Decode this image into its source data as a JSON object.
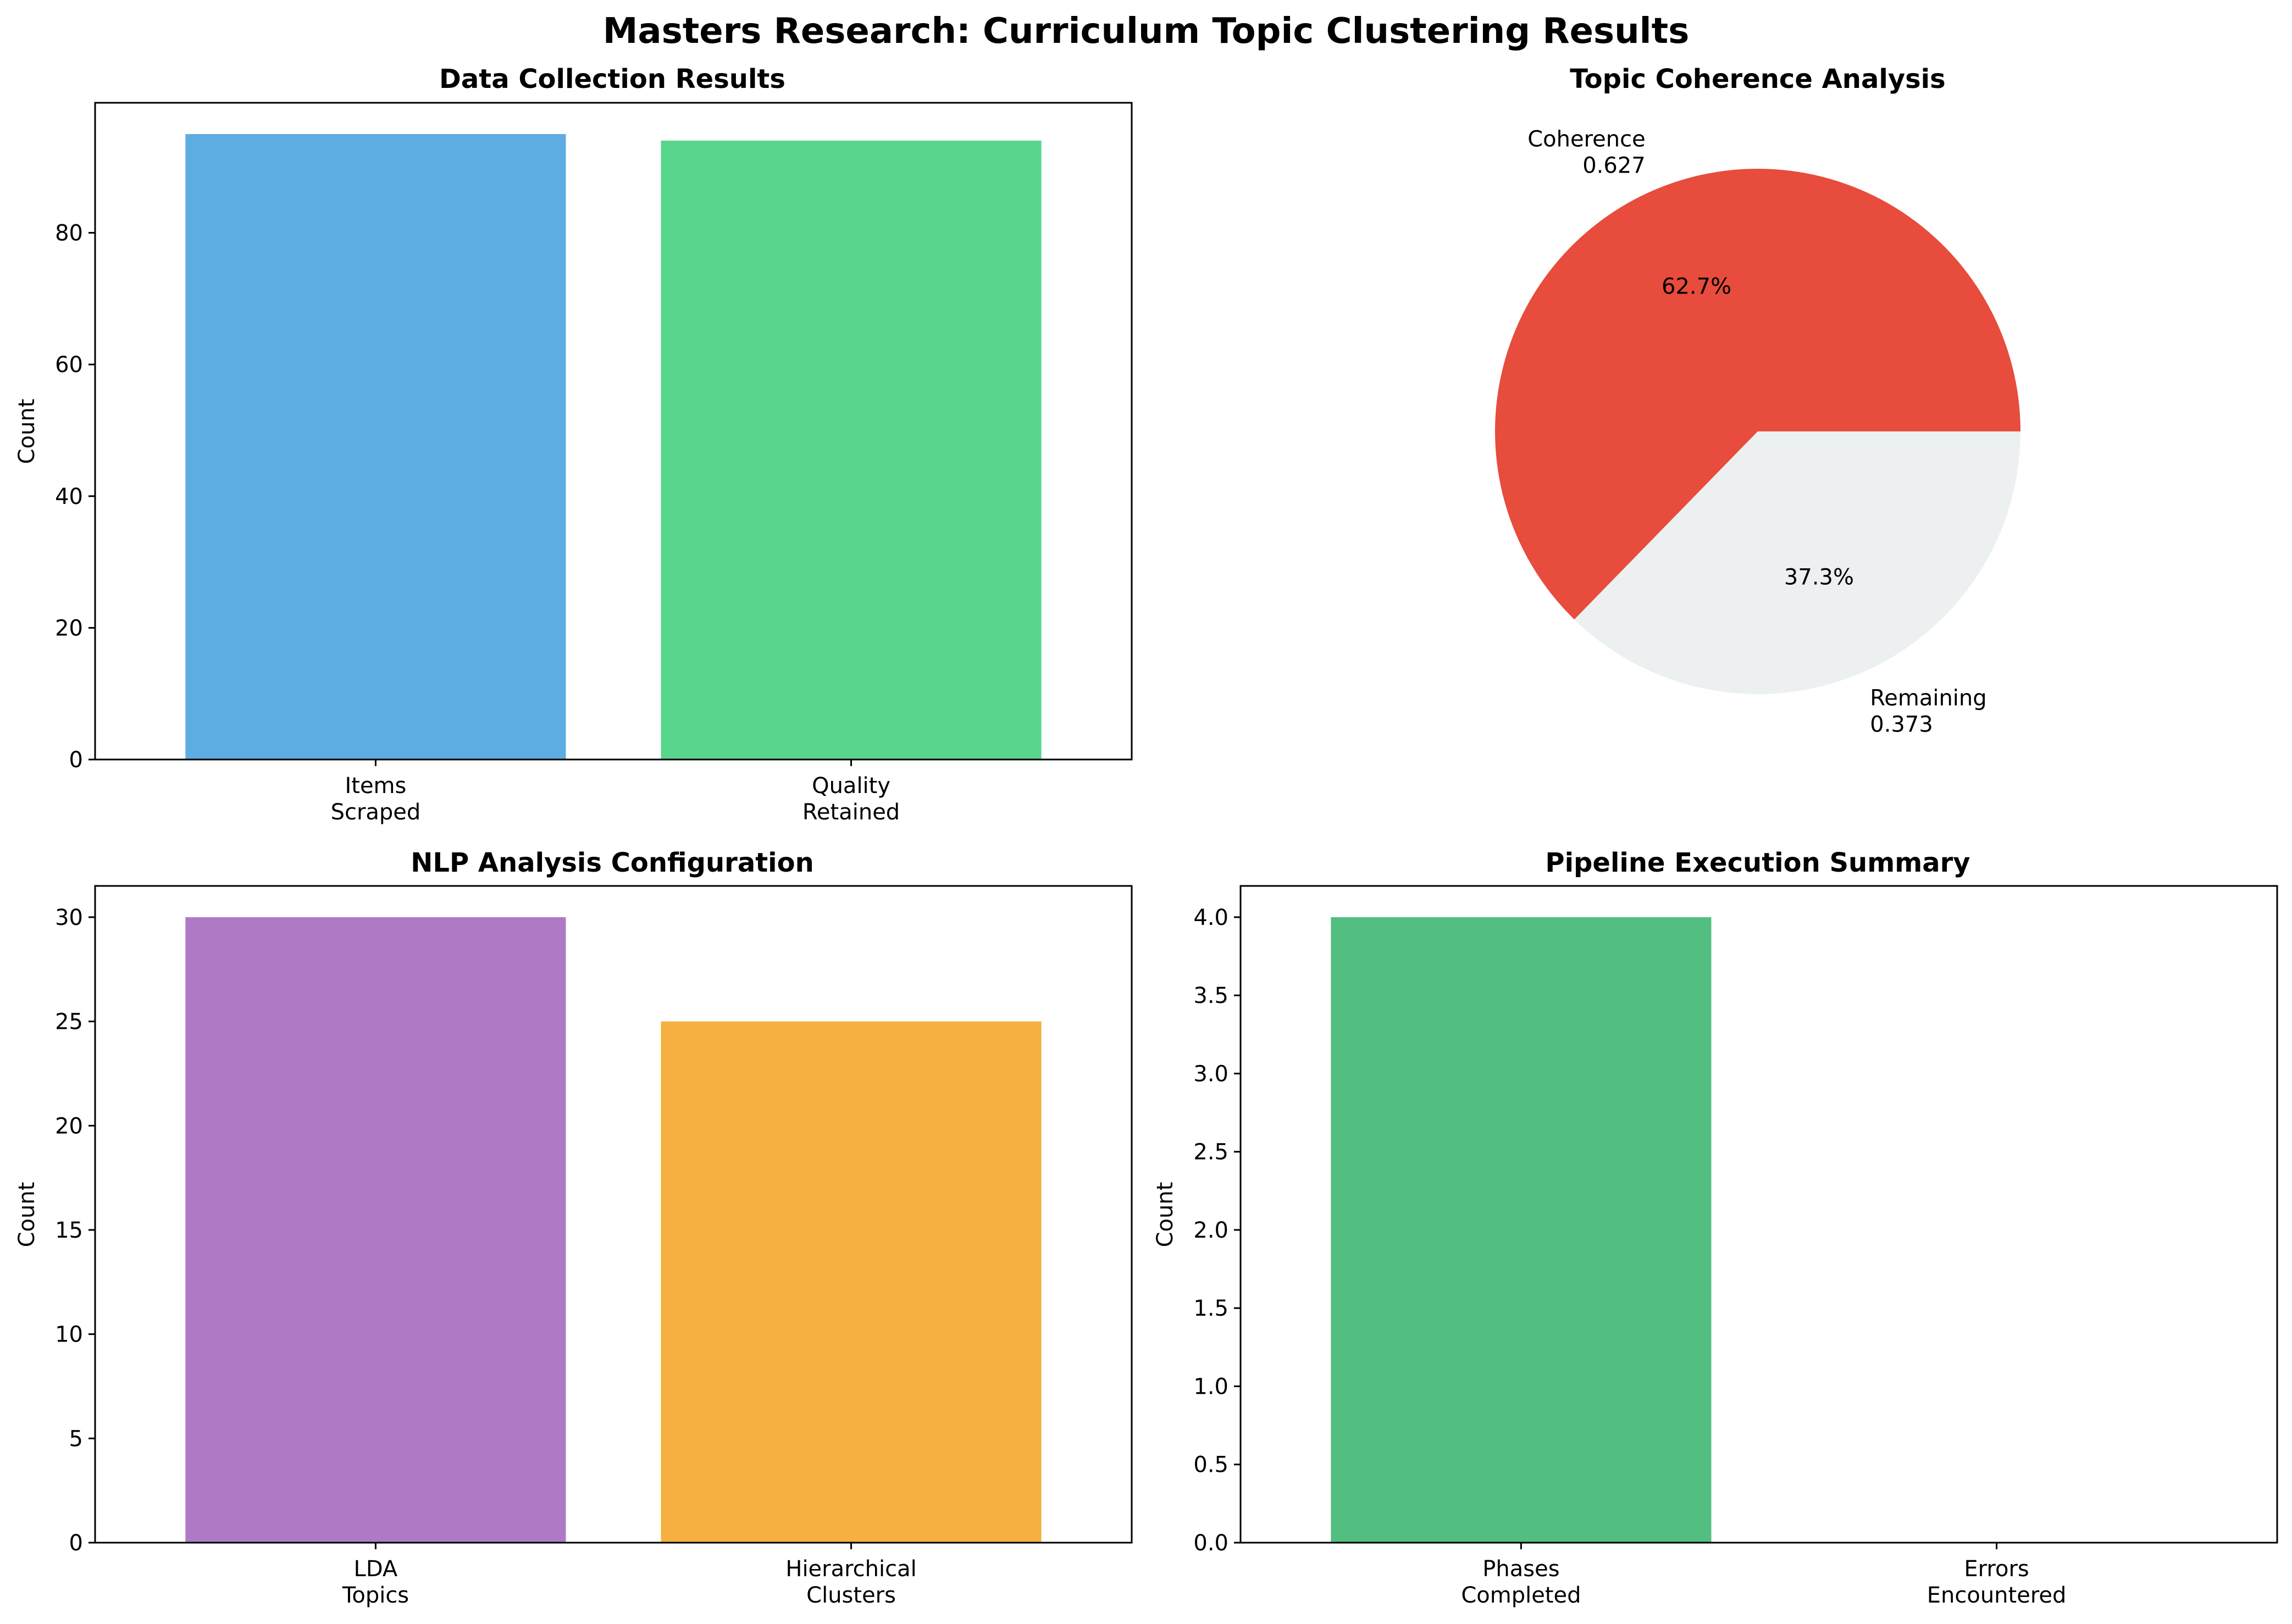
{
  "figure_title": "Masters Research: Curriculum Topic Clustering Results",
  "chart_data": [
    {
      "type": "bar",
      "title": "Data Collection Results",
      "categories": [
        [
          "Items",
          "Scraped"
        ],
        [
          "Quality",
          "Retained"
        ]
      ],
      "values": [
        95,
        94
      ],
      "colors": [
        "#5dade2",
        "#58d68d"
      ],
      "xlabel": "",
      "ylabel": "Count",
      "ylim": [
        0,
        99.75
      ],
      "yticks": [
        0,
        20,
        40,
        60,
        80
      ],
      "grid": false
    },
    {
      "type": "pie",
      "title": "Topic Coherence Analysis",
      "slices": [
        {
          "label": [
            "Coherence",
            "0.627"
          ],
          "value": 0.627,
          "pct_label": "62.7%",
          "color": "#e74c3c"
        },
        {
          "label": [
            "Remaining",
            "0.373"
          ],
          "value": 0.373,
          "pct_label": "37.3%",
          "color": "#ecf0f1"
        }
      ]
    },
    {
      "type": "bar",
      "title": "NLP Analysis Configuration",
      "categories": [
        [
          "LDA",
          "Topics"
        ],
        [
          "Hierarchical",
          "Clusters"
        ]
      ],
      "values": [
        30,
        25
      ],
      "colors": [
        "#af7ac5",
        "#f5b041"
      ],
      "xlabel": "",
      "ylabel": "Count",
      "ylim": [
        0,
        31.5
      ],
      "yticks": [
        0,
        5,
        10,
        15,
        20,
        25,
        30
      ],
      "grid": false
    },
    {
      "type": "bar",
      "title": "Pipeline Execution Summary",
      "categories": [
        [
          "Phases",
          "Completed"
        ],
        [
          "Errors",
          "Encountered"
        ]
      ],
      "values": [
        4,
        0
      ],
      "colors": [
        "#52be80",
        "#e74c3c"
      ],
      "xlabel": "",
      "ylabel": "Count",
      "ylim": [
        0,
        4.2
      ],
      "yticks": [
        0.0,
        0.5,
        1.0,
        1.5,
        2.0,
        2.5,
        3.0,
        3.5,
        4.0
      ],
      "ytick_decimals": 1,
      "grid": false
    }
  ]
}
